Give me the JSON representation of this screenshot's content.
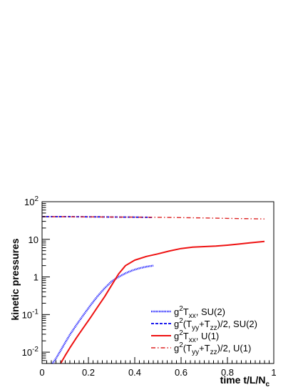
{
  "chart_data": {
    "type": "line",
    "title": "",
    "xlabel_parts": [
      "time t/L/N",
      "c"
    ],
    "ylabel": "kinetic pressures",
    "xlim": [
      0,
      1
    ],
    "ylim": [
      0.005,
      100
    ],
    "yscale": "log",
    "x_ticks": [
      0,
      0.2,
      0.4,
      0.6,
      0.8,
      1
    ],
    "x_tick_labels": [
      "0",
      "0.2",
      "0.4",
      "0.6",
      "0.8",
      "1"
    ],
    "y_tick_labels": [
      {
        "value": 0.01,
        "base": "10",
        "exp": "-2"
      },
      {
        "value": 0.1,
        "base": "10",
        "exp": "-1"
      },
      {
        "value": 1,
        "base": "1",
        "exp": ""
      },
      {
        "value": 10,
        "base": "10",
        "exp": ""
      },
      {
        "value": 100,
        "base": "10",
        "exp": "2"
      }
    ],
    "grid": false,
    "legend_position": "lower-right",
    "series": [
      {
        "legend_parts": [
          [
            "g",
            ""
          ],
          [
            "2",
            "sup"
          ],
          [
            "T",
            ""
          ],
          [
            "xx",
            "sub"
          ],
          [
            ", SU(2)",
            ""
          ]
        ],
        "color": "#2020ff",
        "dash": "1.2,1",
        "width": 2.6,
        "x": [
          0.045,
          0.06,
          0.08,
          0.1,
          0.12,
          0.15,
          0.18,
          0.21,
          0.24,
          0.27,
          0.3,
          0.33,
          0.36,
          0.39,
          0.42,
          0.45,
          0.48
        ],
        "y": [
          0.005,
          0.0068,
          0.011,
          0.018,
          0.029,
          0.055,
          0.1,
          0.18,
          0.31,
          0.5,
          0.76,
          1.0,
          1.25,
          1.5,
          1.7,
          1.87,
          2.0
        ]
      },
      {
        "legend_parts": [
          [
            "g",
            ""
          ],
          [
            "2",
            "sup"
          ],
          [
            "(T",
            ""
          ],
          [
            "yy",
            "sub"
          ],
          [
            "+T",
            ""
          ],
          [
            "zz",
            "sub"
          ],
          [
            ")/2, SU(2)",
            ""
          ]
        ],
        "color": "#1a1aee",
        "dash": "4,2",
        "width": 2,
        "x": [
          0,
          0.05,
          0.1,
          0.15,
          0.2,
          0.25,
          0.3,
          0.35,
          0.4,
          0.45,
          0.48
        ],
        "y": [
          40,
          40,
          40,
          39.8,
          39.6,
          39.4,
          39.2,
          39,
          38.8,
          38.5,
          38.3
        ]
      },
      {
        "legend_parts": [
          [
            "g",
            ""
          ],
          [
            "2",
            "sup"
          ],
          [
            "T",
            ""
          ],
          [
            "xx",
            "sub"
          ],
          [
            ", U(1)",
            ""
          ]
        ],
        "color": "#ee1111",
        "dash": "",
        "width": 2,
        "x": [
          0.08,
          0.1,
          0.12,
          0.15,
          0.18,
          0.21,
          0.24,
          0.27,
          0.3,
          0.33,
          0.36,
          0.4,
          0.45,
          0.5,
          0.55,
          0.6,
          0.65,
          0.7,
          0.75,
          0.8,
          0.85,
          0.9,
          0.96
        ],
        "y": [
          0.005,
          0.0082,
          0.013,
          0.025,
          0.046,
          0.085,
          0.16,
          0.3,
          0.6,
          1.2,
          2.0,
          2.8,
          3.5,
          4.1,
          4.9,
          5.7,
          6.2,
          6.4,
          6.6,
          7.0,
          7.5,
          8.1,
          8.8
        ]
      },
      {
        "legend_parts": [
          [
            "g",
            ""
          ],
          [
            "2",
            "sup"
          ],
          [
            "(T",
            ""
          ],
          [
            "yy",
            "sub"
          ],
          [
            "+T",
            ""
          ],
          [
            "zz",
            "sub"
          ],
          [
            ")/2, U(1)",
            ""
          ]
        ],
        "color": "#dd2222",
        "dash": "6,3,1.5,3",
        "width": 1.4,
        "x": [
          0,
          0.1,
          0.2,
          0.3,
          0.4,
          0.5,
          0.6,
          0.7,
          0.8,
          0.9,
          0.96
        ],
        "y": [
          40,
          39.8,
          39.5,
          39.2,
          38.9,
          38.4,
          37.8,
          37,
          36.1,
          35.3,
          34.8
        ]
      }
    ]
  }
}
